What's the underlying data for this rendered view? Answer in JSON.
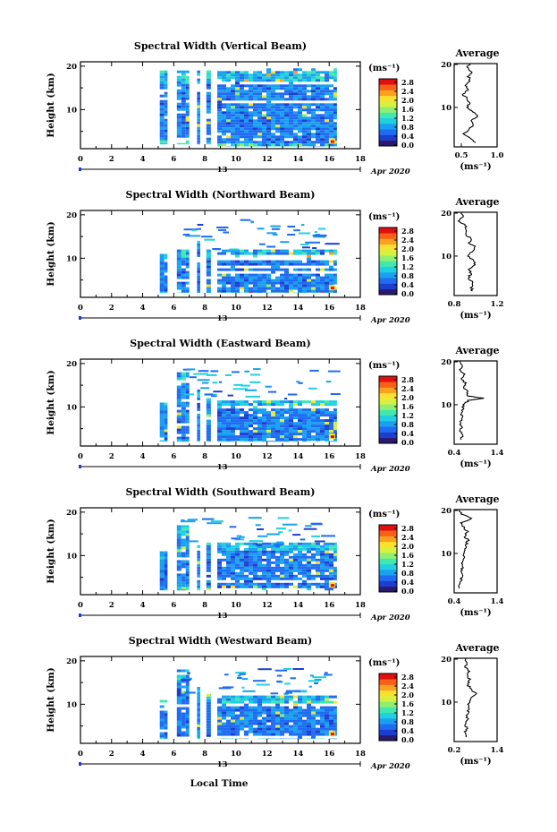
{
  "page": {
    "xlabel": "Local Time",
    "ylabel": "Height (km)",
    "date_label": "Apr 2020",
    "day_label": "13",
    "unit_label": "(ms⁻¹)",
    "avg_title": "Average",
    "avg_xlabel": "(ms⁻¹)"
  },
  "colormap": [
    "#2a1a6e",
    "#1d3fd0",
    "#1f6cf2",
    "#1aa0f0",
    "#20d0e0",
    "#40e8b0",
    "#8ef070",
    "#d8f040",
    "#fce030",
    "#fca020",
    "#f86018",
    "#e01010"
  ],
  "chart_data": [
    {
      "type": "heatmap",
      "title": "Spectral Width (Vertical Beam)",
      "xlabel": "Local Time",
      "ylabel": "Height (km)",
      "x_ticks": [
        "0",
        "2",
        "4",
        "6",
        "8",
        "10",
        "12",
        "14",
        "16",
        "18"
      ],
      "xlim": [
        0,
        18
      ],
      "y_ticks": [
        "10",
        "20"
      ],
      "ylim": [
        1,
        21
      ],
      "colorbar_ticks": [
        "0.0",
        "0.4",
        "0.8",
        "1.2",
        "1.6",
        "2.0",
        "2.4",
        "2.8"
      ],
      "colorbar_range": [
        0,
        3.0
      ],
      "data_blocks": [
        {
          "x": [
            5.1,
            5.6
          ],
          "y": [
            2,
            19
          ]
        },
        {
          "x": [
            6.2,
            7.0
          ],
          "y": [
            2,
            19
          ]
        },
        {
          "x": [
            7.5,
            7.7
          ],
          "y": [
            2,
            19
          ]
        },
        {
          "x": [
            8.1,
            8.4
          ],
          "y": [
            2,
            19
          ]
        },
        {
          "x": [
            8.8,
            16.5
          ],
          "y": [
            1.5,
            19.5
          ]
        }
      ],
      "average_profile": {
        "xlim": [
          0.4,
          1.0
        ],
        "x_ticks": [
          "0.5",
          "1.0"
        ],
        "points": [
          [
            0.62,
            20.0
          ],
          [
            0.58,
            19.0
          ],
          [
            0.66,
            18.0
          ],
          [
            0.6,
            17.0
          ],
          [
            0.63,
            16.0
          ],
          [
            0.55,
            15.0
          ],
          [
            0.6,
            14.0
          ],
          [
            0.52,
            13.0
          ],
          [
            0.58,
            12.0
          ],
          [
            0.62,
            11.0
          ],
          [
            0.57,
            10.0
          ],
          [
            0.66,
            9.0
          ],
          [
            0.72,
            8.0
          ],
          [
            0.64,
            7.0
          ],
          [
            0.68,
            6.0
          ],
          [
            0.6,
            5.0
          ],
          [
            0.54,
            4.0
          ],
          [
            0.62,
            3.0
          ],
          [
            0.7,
            2.0
          ]
        ]
      }
    },
    {
      "type": "heatmap",
      "title": "Spectral Width (Northward Beam)",
      "xlabel": "Local Time",
      "ylabel": "Height (km)",
      "x_ticks": [
        "0",
        "2",
        "4",
        "6",
        "8",
        "10",
        "12",
        "14",
        "16",
        "18"
      ],
      "xlim": [
        0,
        18
      ],
      "y_ticks": [
        "10",
        "20"
      ],
      "ylim": [
        1,
        21
      ],
      "colorbar_ticks": [
        "0.0",
        "0.4",
        "0.8",
        "1.2",
        "1.6",
        "2.0",
        "2.4",
        "2.8"
      ],
      "colorbar_range": [
        0,
        3.0
      ],
      "data_blocks": [
        {
          "x": [
            5.1,
            5.6
          ],
          "y": [
            2,
            11
          ]
        },
        {
          "x": [
            6.2,
            7.0
          ],
          "y": [
            2,
            12
          ]
        },
        {
          "x": [
            7.5,
            7.7
          ],
          "y": [
            2,
            14
          ]
        },
        {
          "x": [
            8.1,
            8.4
          ],
          "y": [
            2,
            12
          ]
        },
        {
          "x": [
            8.8,
            16.5
          ],
          "y": [
            2,
            12
          ]
        }
      ],
      "average_profile": {
        "xlim": [
          0.8,
          1.2
        ],
        "x_ticks": [
          "0.8",
          "1.2"
        ],
        "points": [
          [
            0.86,
            20.0
          ],
          [
            0.88,
            19.0
          ],
          [
            0.85,
            18.0
          ],
          [
            0.9,
            17.0
          ],
          [
            0.92,
            16.0
          ],
          [
            0.9,
            15.0
          ],
          [
            0.96,
            14.0
          ],
          [
            0.94,
            13.0
          ],
          [
            1.0,
            12.0
          ],
          [
            0.96,
            11.0
          ],
          [
            0.92,
            10.0
          ],
          [
            0.98,
            9.0
          ],
          [
            1.0,
            8.0
          ],
          [
            0.94,
            7.0
          ],
          [
            0.96,
            6.0
          ],
          [
            0.93,
            5.0
          ],
          [
            0.98,
            4.0
          ],
          [
            0.96,
            3.0
          ],
          [
            0.97,
            2.0
          ]
        ]
      }
    },
    {
      "type": "heatmap",
      "title": "Spectral Width (Eastward Beam)",
      "xlabel": "Local Time",
      "ylabel": "Height (km)",
      "x_ticks": [
        "0",
        "2",
        "4",
        "6",
        "8",
        "10",
        "12",
        "14",
        "16",
        "18"
      ],
      "xlim": [
        0,
        18
      ],
      "y_ticks": [
        "10",
        "20"
      ],
      "ylim": [
        1,
        21
      ],
      "colorbar_ticks": [
        "0.0",
        "0.4",
        "0.8",
        "1.2",
        "1.6",
        "2.0",
        "2.4",
        "2.8"
      ],
      "colorbar_range": [
        0,
        3.0
      ],
      "data_blocks": [
        {
          "x": [
            5.1,
            5.6
          ],
          "y": [
            2,
            11
          ]
        },
        {
          "x": [
            6.2,
            7.0
          ],
          "y": [
            2,
            18
          ]
        },
        {
          "x": [
            7.5,
            7.7
          ],
          "y": [
            2,
            14
          ]
        },
        {
          "x": [
            8.1,
            8.4
          ],
          "y": [
            2,
            12
          ]
        },
        {
          "x": [
            8.8,
            16.5
          ],
          "y": [
            2,
            11.5
          ]
        }
      ],
      "average_profile": {
        "xlim": [
          0.4,
          1.4
        ],
        "x_ticks": [
          "0.4",
          "1.4"
        ],
        "points": [
          [
            0.55,
            20.0
          ],
          [
            0.6,
            19.0
          ],
          [
            0.52,
            18.0
          ],
          [
            0.62,
            17.0
          ],
          [
            0.58,
            16.0
          ],
          [
            0.66,
            15.0
          ],
          [
            0.62,
            14.0
          ],
          [
            0.7,
            13.0
          ],
          [
            0.72,
            12.0
          ],
          [
            1.1,
            11.5
          ],
          [
            0.74,
            11.0
          ],
          [
            0.62,
            10.0
          ],
          [
            0.6,
            9.0
          ],
          [
            0.56,
            8.0
          ],
          [
            0.58,
            7.0
          ],
          [
            0.55,
            6.0
          ],
          [
            0.57,
            5.0
          ],
          [
            0.54,
            4.0
          ],
          [
            0.58,
            3.0
          ],
          [
            0.56,
            2.0
          ]
        ]
      }
    },
    {
      "type": "heatmap",
      "title": "Spectral Width (Southward Beam)",
      "xlabel": "Local Time",
      "ylabel": "Height (km)",
      "x_ticks": [
        "0",
        "2",
        "4",
        "6",
        "8",
        "10",
        "12",
        "14",
        "16",
        "18"
      ],
      "xlim": [
        0,
        18
      ],
      "y_ticks": [
        "10",
        "20"
      ],
      "ylim": [
        1,
        21
      ],
      "colorbar_ticks": [
        "0.0",
        "0.4",
        "0.8",
        "1.2",
        "1.6",
        "2.0",
        "2.4",
        "2.8"
      ],
      "colorbar_range": [
        0,
        3.0
      ],
      "data_blocks": [
        {
          "x": [
            5.1,
            5.6
          ],
          "y": [
            2,
            11
          ]
        },
        {
          "x": [
            6.2,
            7.0
          ],
          "y": [
            2,
            17
          ]
        },
        {
          "x": [
            7.5,
            7.7
          ],
          "y": [
            2,
            13
          ]
        },
        {
          "x": [
            8.1,
            8.4
          ],
          "y": [
            2,
            13
          ]
        },
        {
          "x": [
            8.8,
            16.5
          ],
          "y": [
            2,
            13
          ]
        }
      ],
      "average_profile": {
        "xlim": [
          0.4,
          1.4
        ],
        "x_ticks": [
          "0.4",
          "1.4"
        ],
        "points": [
          [
            0.52,
            20.0
          ],
          [
            0.56,
            19.0
          ],
          [
            0.8,
            18.0
          ],
          [
            0.58,
            17.0
          ],
          [
            0.62,
            16.0
          ],
          [
            0.7,
            15.0
          ],
          [
            0.64,
            14.0
          ],
          [
            0.72,
            13.0
          ],
          [
            0.68,
            12.0
          ],
          [
            0.64,
            11.0
          ],
          [
            0.62,
            10.0
          ],
          [
            0.66,
            9.0
          ],
          [
            0.58,
            8.0
          ],
          [
            0.62,
            7.0
          ],
          [
            0.55,
            6.0
          ],
          [
            0.6,
            5.0
          ],
          [
            0.56,
            4.0
          ],
          [
            0.54,
            3.0
          ],
          [
            0.52,
            2.0
          ]
        ]
      }
    },
    {
      "type": "heatmap",
      "title": "Spectral Width (Westward Beam)",
      "xlabel": "Local Time",
      "ylabel": "Height (km)",
      "x_ticks": [
        "0",
        "2",
        "4",
        "6",
        "8",
        "10",
        "12",
        "14",
        "16",
        "18"
      ],
      "xlim": [
        0,
        18
      ],
      "y_ticks": [
        "10",
        "20"
      ],
      "ylim": [
        1,
        21
      ],
      "colorbar_ticks": [
        "0.0",
        "0.4",
        "0.8",
        "1.2",
        "1.6",
        "2.0",
        "2.4",
        "2.8"
      ],
      "colorbar_range": [
        0,
        3.0
      ],
      "data_blocks": [
        {
          "x": [
            5.1,
            5.6
          ],
          "y": [
            2,
            11
          ]
        },
        {
          "x": [
            6.2,
            7.0
          ],
          "y": [
            2,
            18
          ]
        },
        {
          "x": [
            7.5,
            7.7
          ],
          "y": [
            2,
            14
          ]
        },
        {
          "x": [
            8.1,
            8.4
          ],
          "y": [
            2,
            13
          ]
        },
        {
          "x": [
            8.8,
            16.5
          ],
          "y": [
            2,
            12
          ]
        }
      ],
      "average_profile": {
        "xlim": [
          0.2,
          1.4
        ],
        "x_ticks": [
          "0.2",
          "1.4"
        ],
        "points": [
          [
            0.5,
            20.0
          ],
          [
            0.58,
            19.0
          ],
          [
            0.52,
            18.0
          ],
          [
            0.62,
            17.0
          ],
          [
            0.56,
            16.0
          ],
          [
            0.64,
            15.0
          ],
          [
            0.58,
            14.0
          ],
          [
            0.66,
            13.0
          ],
          [
            0.8,
            12.0
          ],
          [
            0.7,
            11.0
          ],
          [
            0.62,
            10.0
          ],
          [
            0.58,
            9.0
          ],
          [
            0.6,
            8.0
          ],
          [
            0.55,
            7.0
          ],
          [
            0.58,
            6.0
          ],
          [
            0.52,
            5.0
          ],
          [
            0.55,
            4.0
          ],
          [
            0.5,
            3.0
          ],
          [
            0.52,
            2.0
          ]
        ]
      }
    }
  ]
}
